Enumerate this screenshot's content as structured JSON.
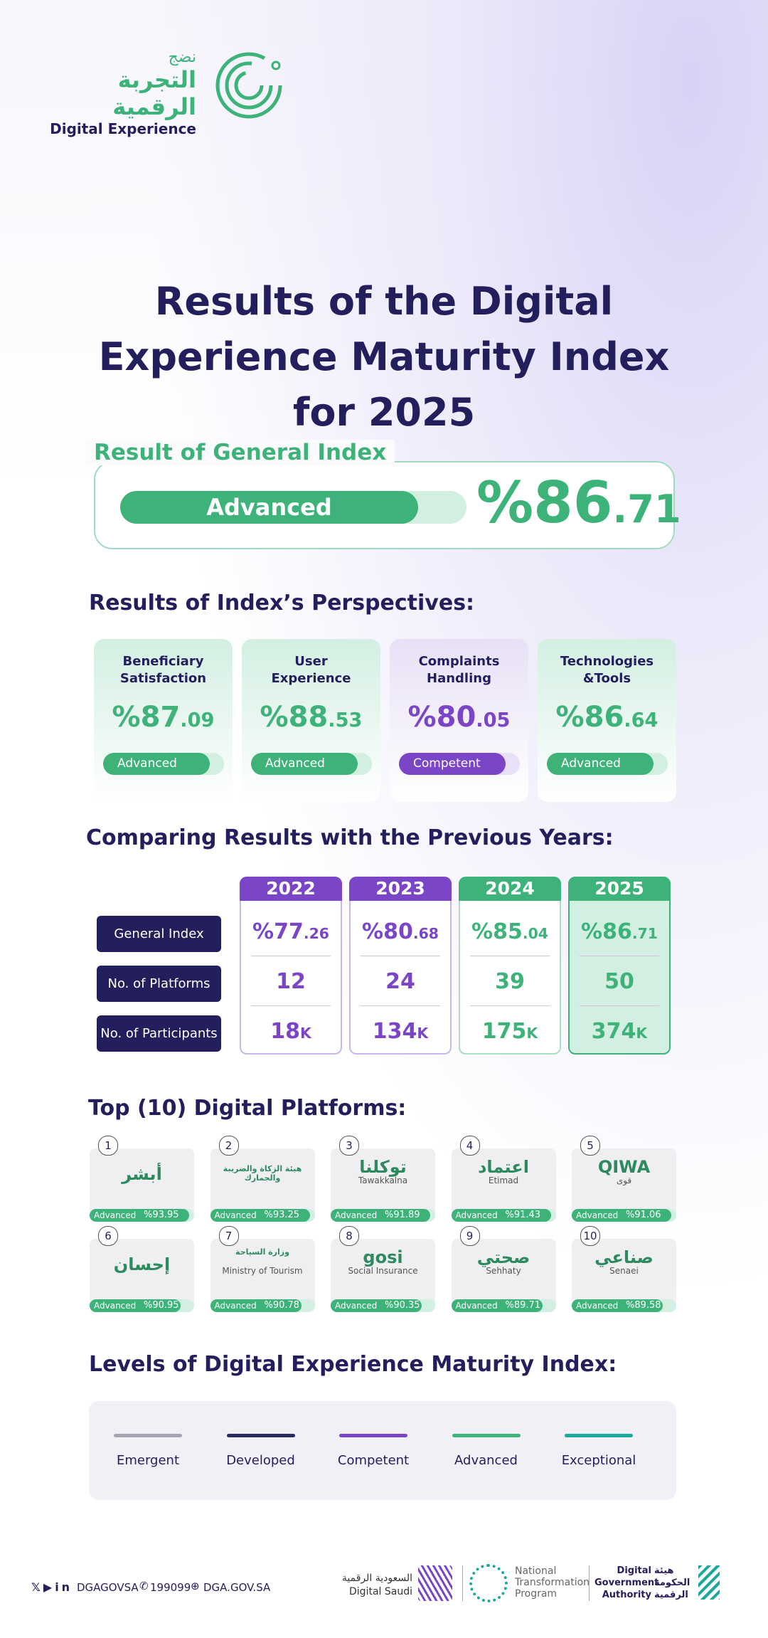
{
  "header": {
    "logo_arabic_top": "نضج",
    "logo_arabic": "التجربة الرقمية",
    "logo_english": "Digital Experience"
  },
  "title": "Results of the Digital Experience Maturity Index for 2025",
  "general_index": {
    "heading": "Result of General Index",
    "level": "Advanced",
    "value": "%86.71"
  },
  "perspectives": {
    "heading": "Results of Index’s Perspectives:",
    "items": [
      {
        "name": "Beneficiary Satisfaction",
        "value": "%87.09",
        "level": "Advanced"
      },
      {
        "name": "User Experience",
        "value": "%88.53",
        "level": "Advanced"
      },
      {
        "name": "Complaints Handling",
        "value": "%80.05",
        "level": "Competent"
      },
      {
        "name": "Technologies &Tools",
        "value": "%86.64",
        "level": "Advanced"
      }
    ]
  },
  "comparison": {
    "heading": "Comparing Results with the Previous Years:",
    "years": [
      {
        "year": "2022",
        "color": "#7b45c8"
      },
      {
        "year": "2023",
        "color": "#7b45c8"
      },
      {
        "year": "2024",
        "color": "#3db37a"
      },
      {
        "year": "2025",
        "color": "#3db37a"
      }
    ],
    "rows": [
      {
        "label": "General Index",
        "values": [
          "%77.26",
          "%80.68",
          "%85.04",
          "%86.71"
        ]
      },
      {
        "label": "No. of Platforms",
        "values": [
          "12",
          "24",
          "39",
          "50"
        ]
      },
      {
        "label": "No. of Participants",
        "values": [
          "18K",
          "134K",
          "175K",
          "374K"
        ]
      }
    ]
  },
  "top_platforms": {
    "heading": "Top (10) Digital Platforms:",
    "items": [
      {
        "rank": "1",
        "logo": [
          "أبشر"
        ],
        "level": "Advanced",
        "value": "%93.95"
      },
      {
        "rank": "2",
        "logo": [
          "هيئة الزكاة والضريبة والجمارك"
        ],
        "level": "Advanced",
        "value": "%93.25"
      },
      {
        "rank": "3",
        "logo": [
          "توكلنا",
          "Tawakkalna"
        ],
        "level": "Advanced",
        "value": "%91.89"
      },
      {
        "rank": "4",
        "logo": [
          "اعتماد",
          "Etimad"
        ],
        "level": "Advanced",
        "value": "%91.43"
      },
      {
        "rank": "5",
        "logo": [
          "QIWA",
          "قوى"
        ],
        "level": "Advanced",
        "value": "%91.06"
      },
      {
        "rank": "6",
        "logo": [
          "إحسان"
        ],
        "level": "Advanced",
        "value": "%90.95"
      },
      {
        "rank": "7",
        "logo": [
          "وزارة السياحة",
          "Ministry of Tourism"
        ],
        "level": "Advanced",
        "value": "%90.78"
      },
      {
        "rank": "8",
        "logo": [
          "gosi",
          "Social Insurance"
        ],
        "level": "Advanced",
        "value": "%90.35"
      },
      {
        "rank": "9",
        "logo": [
          "صحتي",
          "Sehhaty"
        ],
        "level": "Advanced",
        "value": "%89.71"
      },
      {
        "rank": "10",
        "logo": [
          "صناعي",
          "Senaei"
        ],
        "level": "Advanced",
        "value": "%89.58"
      }
    ]
  },
  "levels": {
    "heading": "Levels of Digital Experience Maturity Index:",
    "items": [
      {
        "name": "Emergent",
        "color": "#a3a6b1"
      },
      {
        "name": "Developed",
        "color": "#2b2a5e"
      },
      {
        "name": "Competent",
        "color": "#7b45c8"
      },
      {
        "name": "Advanced",
        "color": "#3db37a"
      },
      {
        "name": "Exceptional",
        "color": "#1aa99a"
      }
    ]
  },
  "footer": {
    "handle": "DGAGOVSA",
    "phone": "199099",
    "website": "DGA.GOV.SA",
    "digital_saudi": [
      "السعودية الرقمية",
      "Digital Saudi"
    ],
    "ntp": [
      "National",
      "Transformation",
      "Program"
    ],
    "dga_english": [
      "Digital",
      "Government",
      "Authority"
    ],
    "dga_arabic": [
      "هيئة",
      "الحكومة",
      "الرقمية"
    ]
  }
}
